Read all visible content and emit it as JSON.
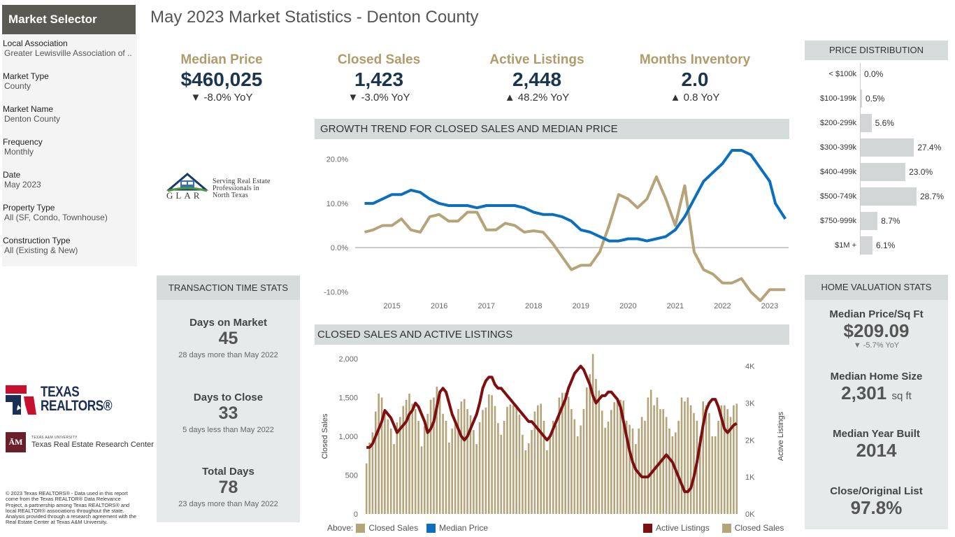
{
  "sidebar": {
    "header": "Market Selector",
    "filters": [
      {
        "label": "Local Association",
        "value": "Greater Lewisville Association of .."
      },
      {
        "label": "Market Type",
        "value": "County"
      },
      {
        "label": "Market Name",
        "value": "Denton County"
      },
      {
        "label": "Frequency",
        "value": "Monthly"
      },
      {
        "label": "Date",
        "value": "May 2023"
      },
      {
        "label": "Property Type",
        "value": "All (SF, Condo, Townhouse)"
      },
      {
        "label": "Construction Type",
        "value": "All (Existing & New)"
      }
    ]
  },
  "title": "May 2023 Market Statistics - Denton County",
  "kpis": [
    {
      "label": "Median Price",
      "value": "$460,025",
      "change": "▼ -8.0% YoY"
    },
    {
      "label": "Closed Sales",
      "value": "1,423",
      "change": "▼ -3.0% YoY"
    },
    {
      "label": "Active Listings",
      "value": "2,448",
      "change": "▲ 48.2% YoY"
    },
    {
      "label": "Months Inventory",
      "value": "2.0",
      "change": "▲ 0.8 YoY"
    }
  ],
  "glar": {
    "letters": "GLAR",
    "line1": "Serving Real Estate",
    "line2": "Professionals in",
    "line3": "North Texas"
  },
  "transaction": {
    "header": "TRANSACTION TIME STATS",
    "items": [
      {
        "label": "Days on Market",
        "value": "45",
        "note": "28 days more than May 2022"
      },
      {
        "label": "Days to Close",
        "value": "33",
        "note": "5 days less than May 2022"
      },
      {
        "label": "Total Days",
        "value": "78",
        "note": "23 days more than May 2022"
      }
    ]
  },
  "home_valuation": {
    "header": "HOME VALUATION STATS",
    "items": [
      {
        "label": "Median Price/Sq Ft",
        "value": "$209.09",
        "unit": "",
        "note": "▼ -5.7% YoY"
      },
      {
        "label": "Median Home Size",
        "value": "2,301",
        "unit": "sq ft",
        "note": ""
      },
      {
        "label": "Median Year Built",
        "value": "2014",
        "unit": "",
        "note": ""
      },
      {
        "label": "Close/Original List",
        "value": "97.8%",
        "unit": "",
        "note": ""
      }
    ]
  },
  "price_distribution": {
    "header": "PRICE DISTRIBUTION",
    "rows": [
      {
        "label": "< $100k",
        "value": 0.0,
        "text": "0.0%"
      },
      {
        "label": "$100-199k",
        "value": 0.5,
        "text": "0.5%"
      },
      {
        "label": "$200-299k",
        "value": 5.6,
        "text": "5.6%"
      },
      {
        "label": "$300-399k",
        "value": 27.4,
        "text": "27.4%"
      },
      {
        "label": "$400-499k",
        "value": 23.0,
        "text": "23.0%"
      },
      {
        "label": "$500-749k",
        "value": 28.7,
        "text": "28.7%"
      },
      {
        "label": "$750-999k",
        "value": 8.7,
        "text": "8.7%"
      },
      {
        "label": "$1M +",
        "value": 6.1,
        "text": "6.1%"
      }
    ]
  },
  "logos": {
    "texas_realtors": "TEXAS REALTORS®",
    "tam_box": "ĀM",
    "tam_small": "TEXAS A&M UNIVERSITY",
    "tam_big": "Texas Real Estate Research Center"
  },
  "copyright": "© 2023 Texas REALTORS® - Data used in this report come from the Texas REALTOR® Data Relevance Project, a partnership among Texas REALTORS® and local REALTOR® associations throughout the state. Analysis provided through a research agreement with the Real Estate Center at Texas A&M University.",
  "colors": {
    "gold": "#b5a47a",
    "blue": "#0b6fbd",
    "maroon": "#7d0f10",
    "navy": "#1b3550",
    "panel": "#e6eaea"
  },
  "chart_data": [
    {
      "type": "line",
      "title": "GROWTH TREND FOR CLOSED SALES AND MEDIAN PRICE",
      "x_ticks": [
        "2015",
        "2016",
        "2017",
        "2018",
        "2019",
        "2020",
        "2021",
        "2022",
        "2023"
      ],
      "y_ticks": [
        "20.0%",
        "10.0%",
        "0.0%",
        "-10.0%"
      ],
      "ylim": [
        -12,
        22
      ],
      "xlim": [
        2014.25,
        2023.4
      ],
      "legend_prefix": "Above:",
      "series": [
        {
          "name": "Closed Sales",
          "color": "#b5a47a",
          "x": [
            2014.42,
            2014.6,
            2014.8,
            2015.0,
            2015.2,
            2015.4,
            2015.6,
            2015.8,
            2016.0,
            2016.2,
            2016.4,
            2016.6,
            2016.8,
            2017.0,
            2017.2,
            2017.4,
            2017.6,
            2017.8,
            2018.0,
            2018.2,
            2018.4,
            2018.6,
            2018.8,
            2019.0,
            2019.2,
            2019.4,
            2019.6,
            2019.8,
            2020.0,
            2020.2,
            2020.4,
            2020.6,
            2020.8,
            2021.0,
            2021.2,
            2021.4,
            2021.6,
            2021.8,
            2022.0,
            2022.2,
            2022.4,
            2022.6,
            2022.8,
            2023.0,
            2023.12,
            2023.33
          ],
          "y": [
            3.5,
            4,
            5,
            5,
            6.5,
            4,
            3.5,
            7,
            7.5,
            6,
            6,
            8,
            8,
            4,
            4,
            5.5,
            5,
            3.5,
            3.8,
            3.5,
            1,
            -2,
            -5,
            -4,
            -4,
            -1,
            5,
            12,
            11,
            9,
            11,
            16,
            11,
            5,
            14,
            -1,
            -5,
            -6,
            -8,
            -8,
            -7,
            -10,
            -12,
            -9.5,
            -9.5,
            -9.5
          ]
        },
        {
          "name": "Median Price",
          "color": "#0b6fbd",
          "x": [
            2014.42,
            2014.6,
            2014.8,
            2015.0,
            2015.2,
            2015.4,
            2015.6,
            2015.8,
            2016.0,
            2016.2,
            2016.4,
            2016.6,
            2016.8,
            2017.0,
            2017.2,
            2017.4,
            2017.6,
            2017.8,
            2018.0,
            2018.2,
            2018.4,
            2018.6,
            2018.8,
            2019.0,
            2019.2,
            2019.4,
            2019.6,
            2019.8,
            2020.0,
            2020.2,
            2020.4,
            2020.6,
            2020.8,
            2021.0,
            2021.2,
            2021.4,
            2021.6,
            2021.8,
            2022.0,
            2022.2,
            2022.4,
            2022.6,
            2022.8,
            2023.0,
            2023.12,
            2023.33
          ],
          "y": [
            10,
            10,
            11,
            12,
            12,
            13,
            12.5,
            11,
            10,
            9.5,
            9.5,
            9.5,
            9,
            9.5,
            9.5,
            9.5,
            9.5,
            9,
            8,
            7.5,
            7.5,
            7,
            6,
            4,
            3.5,
            2.5,
            1.5,
            1.5,
            2,
            2,
            1.5,
            2,
            2.5,
            4,
            7,
            11,
            15,
            17,
            19,
            22,
            22,
            21,
            18,
            15,
            10,
            6.5
          ]
        }
      ]
    },
    {
      "type": "bar",
      "title": "CLOSED SALES AND ACTIVE LISTINGS",
      "ylabel": "Closed Sales",
      "y2label": "Active Listings",
      "y_ticks": [
        "2,000",
        "1,500",
        "1,000",
        "500",
        "0"
      ],
      "y2_ticks": [
        "4K",
        "3K",
        "2K",
        "1K",
        "0K"
      ],
      "ylim": [
        0,
        2000
      ],
      "y2lim": [
        0,
        4200
      ],
      "series": [
        {
          "name": "Closed Sales",
          "color": "#b5a47a",
          "values": [
            650,
            920,
            1050,
            1320,
            1550,
            1500,
            1300,
            1220,
            1100,
            900,
            1180,
            1250,
            1390,
            1470,
            1550,
            1420,
            1350,
            1200,
            870,
            1130,
            1290,
            1470,
            1500,
            1640,
            1570,
            1290,
            1200,
            920,
            1100,
            1200,
            1350,
            1450,
            1480,
            1350,
            1270,
            1080,
            900,
            1180,
            1340,
            1370,
            1540,
            1530,
            1390,
            1170,
            1020,
            1200,
            1380,
            1410,
            1400,
            1400,
            1280,
            1020,
            820,
            910,
            1080,
            1320,
            1400,
            1420,
            1200,
            820,
            980,
            1200,
            1140,
            1500,
            1560,
            1560,
            1510,
            1350,
            1220,
            1000,
            1140,
            1350,
            1630,
            1800,
            2060,
            1740,
            1590,
            1330,
            1110,
            1190,
            1340,
            1440,
            1480,
            1470,
            1460,
            1200,
            1150,
            1100,
            900,
            1100,
            1250,
            1200,
            1500,
            1600,
            1400,
            1500,
            1350,
            1350,
            1250,
            1100,
            1000,
            1050,
            1200,
            1500,
            1450,
            1500,
            1400,
            1300,
            1200,
            1000,
            1450,
            1400,
            1300,
            1000,
            1000,
            1200,
            1400,
            1400,
            1350,
            1250,
            1400,
            1420
          ]
        },
        {
          "name": "Active Listings",
          "color": "#7d0f10",
          "values": [
            1800,
            1800,
            1900,
            2100,
            2300,
            2500,
            2800,
            2700,
            2600,
            2400,
            2200,
            2300,
            2400,
            2500,
            2700,
            2800,
            3000,
            2900,
            2700,
            2500,
            2200,
            2300,
            2500,
            2900,
            3300,
            3400,
            3300,
            3000,
            2700,
            2500,
            2300,
            2100,
            2000,
            2100,
            2300,
            2500,
            2700,
            3000,
            3400,
            3600,
            3700,
            3700,
            3500,
            3400,
            3400,
            3300,
            3200,
            3100,
            3000,
            2900,
            2800,
            2700,
            2600,
            2500,
            2500,
            2400,
            2300,
            2200,
            2100,
            2000,
            2100,
            2300,
            2500,
            2700,
            2900,
            3100,
            3400,
            3600,
            3800,
            3900,
            4000,
            3900,
            3700,
            3500,
            3200,
            3000,
            3100,
            3200,
            3200,
            3300,
            3300,
            3200,
            3100,
            2900,
            2500,
            2100,
            1700,
            1400,
            1200,
            1100,
            1000,
            1000,
            1000,
            1100,
            1200,
            1300,
            1400,
            1500,
            1600,
            1500,
            1400,
            1200,
            1000,
            800,
            600,
            600,
            700,
            1000,
            1400,
            1900,
            2400,
            2800,
            3000,
            3100,
            3100,
            2900,
            2600,
            2300,
            2200,
            2300,
            2400,
            2450
          ]
        }
      ],
      "legend_right": [
        "Active Listings",
        "Closed Sales"
      ]
    }
  ]
}
